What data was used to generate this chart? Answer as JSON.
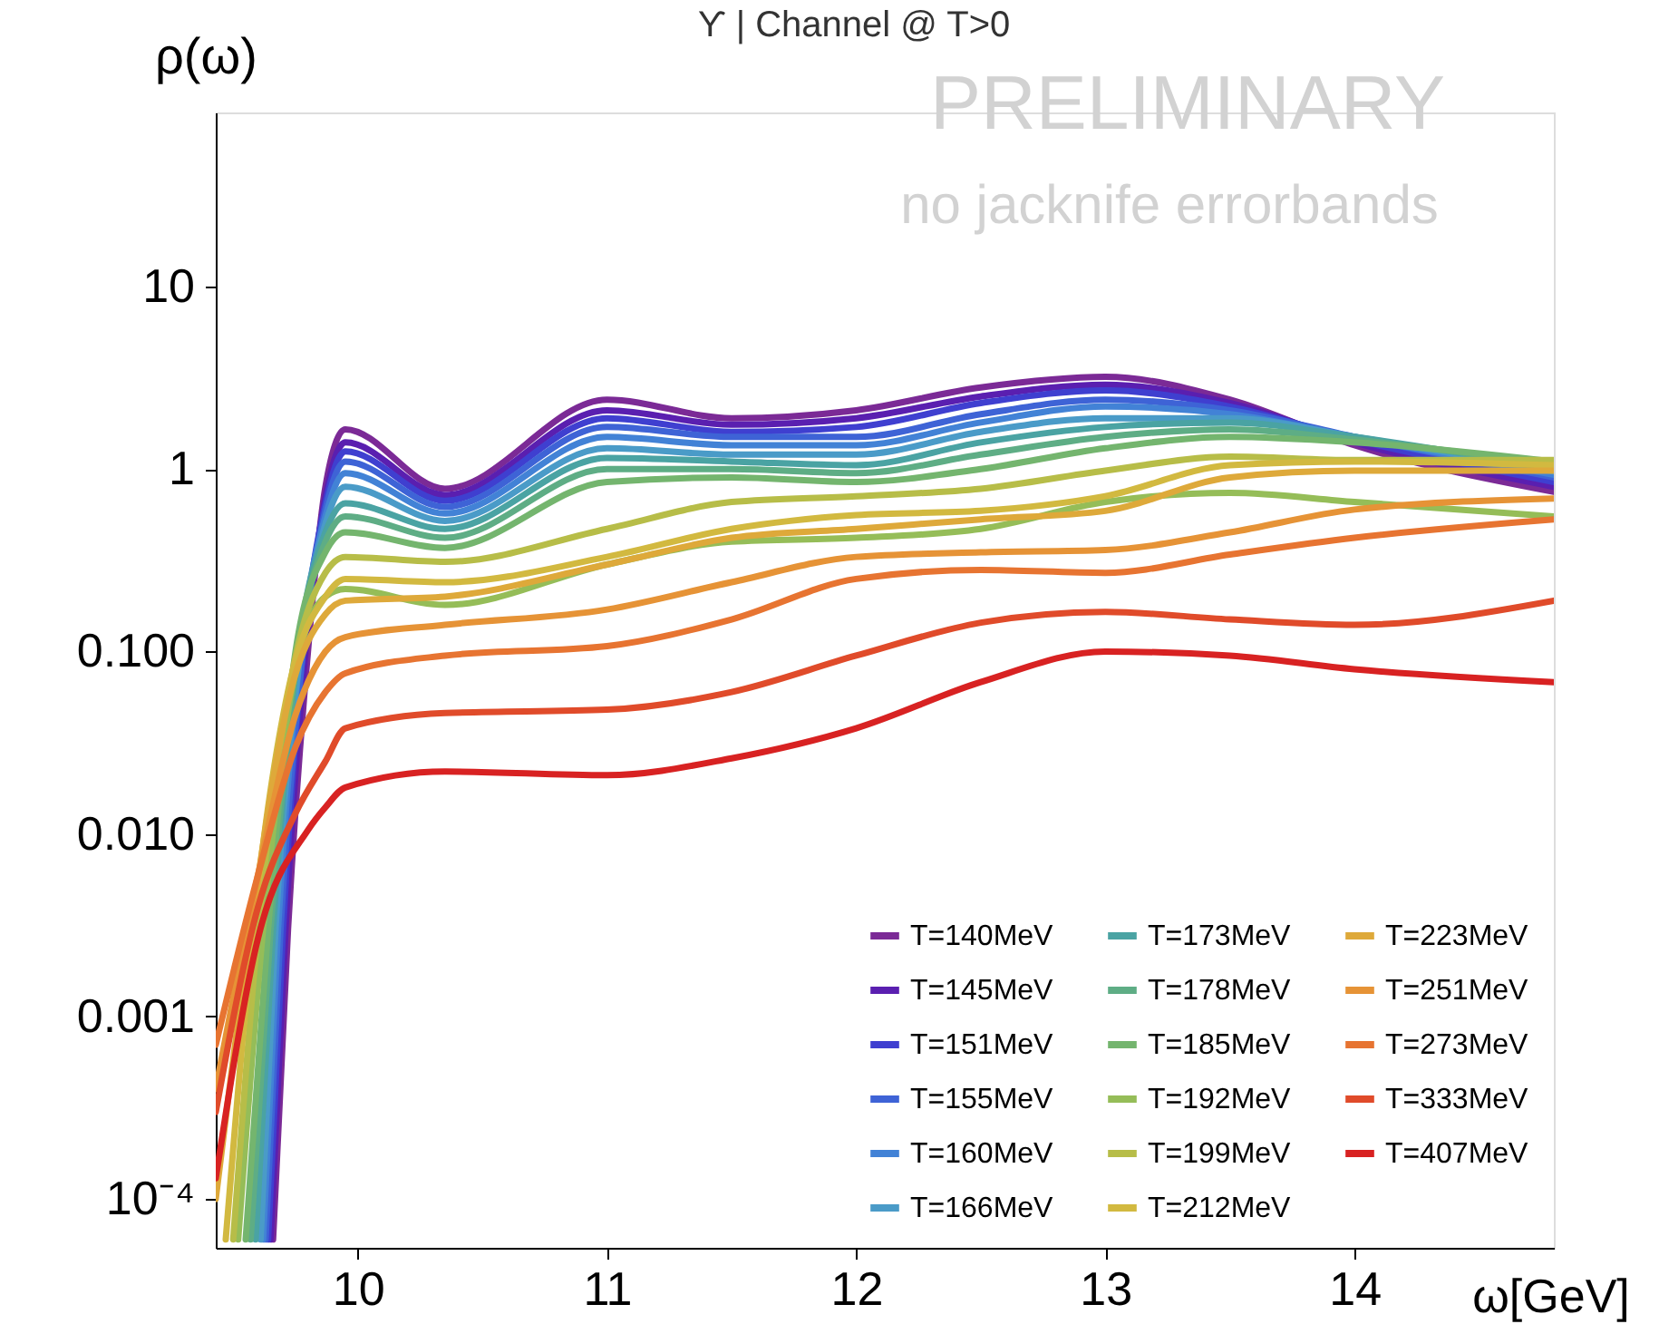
{
  "chart_data": {
    "type": "line",
    "title": "ϒ | Channel @ T>0",
    "xlabel": "ω[GeV]",
    "ylabel": "ρ(ω)",
    "annotations": [
      "PRELIMINARY",
      "no jacknife errorbands"
    ],
    "log": true,
    "grid": false,
    "legend": "bottom right",
    "marker": "none",
    "line_style": "solid",
    "xlim": [
      9.43,
      14.8
    ],
    "xticks": [
      10,
      11,
      12,
      13,
      14
    ],
    "ylim": [
      5.4e-05,
      90
    ],
    "yticks": [
      {
        "value": 0.0001,
        "label": "10⁻⁴"
      },
      {
        "value": 0.001,
        "label": "0.001"
      },
      {
        "value": 0.01,
        "label": "0.010"
      },
      {
        "value": 0.1,
        "label": "0.100"
      },
      1,
      10
    ],
    "series": [
      {
        "name": "T=140MeV",
        "color": "#7b2a96",
        "x": [
          9.66,
          9.72,
          9.8,
          9.87,
          9.95,
          10.35,
          11.0,
          11.5,
          12.0,
          12.5,
          13.0,
          13.5,
          14.0,
          14.8
        ],
        "values": [
          6e-05,
          0.003,
          0.1,
          0.8,
          1.65,
          0.78,
          2.4,
          1.9,
          2.1,
          2.8,
          3.2,
          2.4,
          1.35,
          0.75
        ]
      },
      {
        "name": "T=145MeV",
        "color": "#5a1fb0",
        "x": [
          9.65,
          9.71,
          9.79,
          9.87,
          9.95,
          10.35,
          11.0,
          11.5,
          12.0,
          12.5,
          13.0,
          13.5,
          14.0,
          14.8
        ],
        "values": [
          6e-05,
          0.003,
          0.1,
          0.7,
          1.4,
          0.72,
          2.1,
          1.75,
          1.9,
          2.5,
          2.9,
          2.3,
          1.4,
          0.8
        ]
      },
      {
        "name": "T=151MeV",
        "color": "#3f3fd0",
        "x": [
          9.64,
          9.7,
          9.78,
          9.87,
          9.95,
          10.35,
          11.0,
          11.5,
          12.0,
          12.5,
          13.0,
          13.5,
          14.0,
          14.8
        ],
        "values": [
          6e-05,
          0.003,
          0.1,
          0.65,
          1.25,
          0.67,
          1.9,
          1.6,
          1.7,
          2.3,
          2.7,
          2.2,
          1.45,
          0.85
        ]
      },
      {
        "name": "T=155MeV",
        "color": "#3e63d6",
        "x": [
          9.63,
          9.69,
          9.78,
          9.87,
          9.95,
          10.35,
          11.0,
          11.5,
          12.0,
          12.5,
          13.0,
          13.5,
          14.0,
          14.8
        ],
        "values": [
          6e-05,
          0.003,
          0.1,
          0.6,
          1.1,
          0.62,
          1.7,
          1.5,
          1.5,
          2.0,
          2.4,
          2.1,
          1.5,
          0.9
        ]
      },
      {
        "name": "T=160MeV",
        "color": "#4282d6",
        "x": [
          9.62,
          9.68,
          9.77,
          9.87,
          9.95,
          10.35,
          11.0,
          11.5,
          12.0,
          12.5,
          13.0,
          13.5,
          14.0,
          14.8
        ],
        "values": [
          6e-05,
          0.003,
          0.1,
          0.55,
          0.95,
          0.57,
          1.5,
          1.35,
          1.35,
          1.8,
          2.2,
          2.0,
          1.5,
          0.93
        ]
      },
      {
        "name": "T=166MeV",
        "color": "#4a9bc8",
        "x": [
          9.61,
          9.67,
          9.77,
          9.87,
          9.95,
          10.35,
          11.0,
          11.5,
          12.0,
          12.5,
          13.0,
          13.5,
          14.0,
          14.8
        ],
        "values": [
          6e-05,
          0.003,
          0.1,
          0.5,
          0.8,
          0.52,
          1.3,
          1.2,
          1.2,
          1.6,
          1.9,
          1.9,
          1.5,
          0.97
        ]
      },
      {
        "name": "T=173MeV",
        "color": "#4aa3a3",
        "x": [
          9.59,
          9.66,
          9.76,
          9.87,
          9.95,
          10.35,
          11.0,
          11.5,
          12.0,
          12.5,
          13.0,
          13.5,
          14.0,
          14.8
        ],
        "values": [
          6e-05,
          0.003,
          0.1,
          0.45,
          0.65,
          0.47,
          1.15,
          1.1,
          1.05,
          1.4,
          1.7,
          1.8,
          1.5,
          1.0
        ]
      },
      {
        "name": "T=178MeV",
        "color": "#5ead85",
        "x": [
          9.57,
          9.65,
          9.76,
          9.87,
          9.95,
          10.35,
          11.0,
          11.5,
          12.0,
          12.5,
          13.0,
          13.5,
          14.0,
          14.8
        ],
        "values": [
          6e-05,
          0.003,
          0.1,
          0.4,
          0.55,
          0.42,
          1.0,
          1.0,
          0.95,
          1.2,
          1.5,
          1.65,
          1.45,
          1.05
        ]
      },
      {
        "name": "T=185MeV",
        "color": "#74b56e",
        "x": [
          9.55,
          9.64,
          9.75,
          9.87,
          9.95,
          10.35,
          11.0,
          11.5,
          12.0,
          12.5,
          13.0,
          13.5,
          14.0,
          14.8
        ],
        "values": [
          6e-05,
          0.003,
          0.1,
          0.35,
          0.45,
          0.37,
          0.85,
          0.9,
          0.85,
          1.0,
          1.3,
          1.5,
          1.4,
          1.1
        ]
      },
      {
        "name": "T=192MeV",
        "color": "#95bd58",
        "x": [
          9.52,
          9.62,
          9.75,
          9.87,
          9.95,
          10.35,
          11.0,
          11.5,
          12.0,
          12.5,
          13.0,
          13.5,
          14.0,
          14.8
        ],
        "values": [
          6e-05,
          0.003,
          0.08,
          0.2,
          0.22,
          0.18,
          0.3,
          0.4,
          0.42,
          0.47,
          0.66,
          0.74,
          0.66,
          0.55
        ]
      },
      {
        "name": "T=199MeV",
        "color": "#b7bd48",
        "x": [
          9.5,
          9.6,
          9.74,
          9.87,
          9.95,
          10.35,
          11.0,
          11.5,
          12.0,
          12.5,
          13.0,
          13.5,
          14.0,
          14.8
        ],
        "values": [
          6e-05,
          0.003,
          0.08,
          0.27,
          0.33,
          0.31,
          0.47,
          0.66,
          0.71,
          0.78,
          0.98,
          1.17,
          1.12,
          1.12
        ]
      },
      {
        "name": "T=212MeV",
        "color": "#d2b940",
        "x": [
          9.47,
          9.58,
          9.73,
          9.87,
          9.95,
          10.35,
          11.0,
          11.5,
          12.0,
          12.5,
          13.0,
          13.5,
          14.0,
          14.8
        ],
        "values": [
          6e-05,
          0.003,
          0.07,
          0.2,
          0.25,
          0.24,
          0.33,
          0.47,
          0.56,
          0.59,
          0.71,
          1.05,
          1.1,
          1.05
        ]
      },
      {
        "name": "T=223MeV",
        "color": "#dea93a",
        "x": [
          9.43,
          9.57,
          9.73,
          9.87,
          9.95,
          10.35,
          11.0,
          11.5,
          12.0,
          12.5,
          13.0,
          13.5,
          14.0,
          14.8
        ],
        "values": [
          0.0001,
          0.003,
          0.06,
          0.16,
          0.19,
          0.2,
          0.3,
          0.42,
          0.47,
          0.53,
          0.59,
          0.9,
          0.98,
          0.98
        ]
      },
      {
        "name": "T=251MeV",
        "color": "#e69336",
        "x": [
          9.43,
          9.6,
          9.75,
          9.87,
          9.95,
          10.35,
          11.0,
          11.5,
          12.0,
          12.5,
          13.0,
          13.5,
          14.0,
          14.8
        ],
        "values": [
          0.0004,
          0.006,
          0.045,
          0.1,
          0.12,
          0.14,
          0.17,
          0.24,
          0.33,
          0.35,
          0.36,
          0.45,
          0.6,
          0.69
        ]
      },
      {
        "name": "T=273MeV",
        "color": "#e77431",
        "x": [
          9.43,
          9.6,
          9.75,
          9.87,
          9.95,
          10.35,
          11.0,
          11.5,
          12.0,
          12.5,
          13.0,
          13.5,
          14.0,
          14.8
        ],
        "values": [
          0.0007,
          0.006,
          0.03,
          0.06,
          0.076,
          0.095,
          0.107,
          0.15,
          0.25,
          0.28,
          0.27,
          0.34,
          0.42,
          0.53
        ]
      },
      {
        "name": "T=333MeV",
        "color": "#e04b2a",
        "x": [
          9.43,
          9.6,
          9.75,
          9.87,
          9.95,
          10.35,
          11.0,
          11.5,
          12.0,
          12.5,
          13.0,
          13.5,
          14.0,
          14.8
        ],
        "values": [
          0.0003,
          0.004,
          0.013,
          0.025,
          0.038,
          0.046,
          0.048,
          0.06,
          0.095,
          0.144,
          0.165,
          0.15,
          0.14,
          0.19
        ]
      },
      {
        "name": "T=407MeV",
        "color": "#d82222",
        "x": [
          9.43,
          9.6,
          9.8,
          9.87,
          9.95,
          10.35,
          11.0,
          11.5,
          12.0,
          12.5,
          13.0,
          13.5,
          14.0,
          14.8
        ],
        "values": [
          0.00013,
          0.0027,
          0.0105,
          0.014,
          0.018,
          0.022,
          0.021,
          0.026,
          0.038,
          0.068,
          0.1,
          0.095,
          0.08,
          0.068
        ]
      }
    ]
  }
}
